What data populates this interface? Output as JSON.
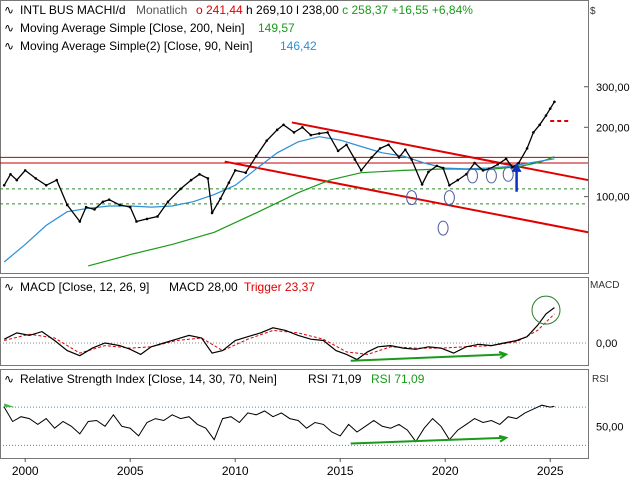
{
  "header": {
    "symbol": "INTL BUS MACHI/d",
    "period": "Monatlich",
    "ohlc": [
      {
        "key": "o",
        "value": "241,44",
        "color": "#e00000"
      },
      {
        "key": "h",
        "value": "269,10",
        "color": "#000000"
      },
      {
        "key": "l",
        "value": "238,00",
        "color": "#000000"
      },
      {
        "key": "c",
        "value": "258,37",
        "color": "#1a9a1a"
      },
      {
        "key": "",
        "value": "+16,55",
        "color": "#1a9a1a"
      },
      {
        "key": "",
        "value": "+6,84%",
        "color": "#1a9a1a"
      }
    ],
    "currency": "$",
    "ma1": {
      "text": "Moving Average Simple  [Close, 200, Nein]",
      "value": "149,57",
      "color": "#1a9a1a"
    },
    "ma2": {
      "text": "Moving Average Simple(2)  [Close, 90, Nein]",
      "value": "146,42",
      "color": "#2b8fd6"
    }
  },
  "macd_header": {
    "text": "MACD  [Close, 12, 26, 9]",
    "macd": "MACD 28,00",
    "trigger": "Trigger 23,37",
    "side": "MACD"
  },
  "rsi_header": {
    "text": "Relative Strength Index  [Close, 14, 30, 70, Nein]",
    "rsi1": "RSI 71,09",
    "rsi2": "RSI 71,09",
    "side": "RSI"
  },
  "chart_data": [
    {
      "type": "line",
      "title": "INTL BUS MACHI/d",
      "scale": "log",
      "y_ticks": [
        "100,00",
        "200,00",
        "300,00"
      ],
      "y_tick_values": [
        100,
        200,
        300
      ],
      "x_ticks": [
        "2000",
        "2005",
        "2010",
        "2015",
        "2020",
        "2025"
      ],
      "xlim": [
        1998.8,
        2026.8
      ],
      "ylim": [
        48,
        400
      ],
      "series": [
        {
          "name": "INTL BUS MACHI/d",
          "color": "#000000",
          "x": [
            1999.0,
            1999.3,
            1999.6,
            2000.0,
            2000.5,
            2001.0,
            2001.5,
            2002.0,
            2002.6,
            2002.9,
            2003.3,
            2003.7,
            2004.0,
            2004.5,
            2005.0,
            2005.3,
            2005.8,
            2006.3,
            2006.8,
            2007.4,
            2007.9,
            2008.3,
            2008.7,
            2008.9,
            2009.3,
            2009.7,
            2010.0,
            2010.5,
            2011.0,
            2011.5,
            2012.0,
            2012.3,
            2012.8,
            2013.2,
            2013.6,
            2014.0,
            2014.4,
            2014.9,
            2015.3,
            2015.7,
            2016.0,
            2016.5,
            2016.9,
            2017.3,
            2017.8,
            2018.1,
            2018.4,
            2018.9,
            2019.2,
            2019.6,
            2019.9,
            2020.2,
            2020.6,
            2021.0,
            2021.4,
            2021.8,
            2022.1,
            2022.5,
            2022.9,
            2023.2,
            2023.5,
            2023.9,
            2024.2,
            2024.5,
            2024.8,
            2025.0,
            2025.2
          ],
          "values": [
            112,
            125,
            118,
            130,
            120,
            112,
            118,
            92,
            78,
            90,
            88,
            95,
            97,
            92,
            90,
            78,
            80,
            82,
            95,
            108,
            118,
            125,
            120,
            85,
            98,
            115,
            130,
            127,
            150,
            175,
            195,
            205,
            190,
            200,
            185,
            188,
            190,
            158,
            168,
            145,
            130,
            148,
            162,
            168,
            148,
            160,
            145,
            113,
            128,
            136,
            133,
            112,
            118,
            125,
            140,
            130,
            132,
            138,
            146,
            134,
            140,
            162,
            190,
            205,
            225,
            241,
            258
          ]
        },
        {
          "name": "Moving Average Simple  [Close, 200, Nein]",
          "color": "#1a9a1a",
          "x": [
            2003.0,
            2005.0,
            2007.0,
            2009.0,
            2011.0,
            2013.0,
            2014.5,
            2016.0,
            2018.0,
            2020.0,
            2022.0,
            2023.5,
            2024.5,
            2025.2
          ],
          "values": [
            50,
            56,
            62,
            70,
            85,
            104,
            118,
            127,
            130,
            132,
            131,
            135,
            141,
            149
          ]
        },
        {
          "name": "Moving Average Simple(2)  [Close, 90, Nein]",
          "color": "#2b8fd6",
          "x": [
            1999.0,
            2000.0,
            2001.0,
            2002.0,
            2003.0,
            2004.0,
            2005.0,
            2006.0,
            2007.0,
            2008.0,
            2009.0,
            2010.0,
            2011.0,
            2012.0,
            2013.0,
            2014.0,
            2015.0,
            2016.0,
            2017.0,
            2018.0,
            2019.0,
            2020.0,
            2021.0,
            2022.0,
            2023.0,
            2024.0,
            2025.2
          ],
          "values": [
            52,
            62,
            75,
            86,
            89,
            91,
            91,
            90,
            91,
            95,
            102,
            112,
            132,
            155,
            173,
            182,
            176,
            165,
            155,
            150,
            140,
            133,
            132,
            133,
            135,
            140,
            146
          ]
        }
      ]
    },
    {
      "type": "line",
      "title": "MACD  [Close, 12, 26, 9]",
      "y_ticks": [
        "0,00"
      ],
      "y_tick_values": [
        0
      ],
      "ylim": [
        -15,
        34
      ],
      "series": [
        {
          "name": "MACD",
          "color": "#000000",
          "x": [
            1999.0,
            1999.6,
            2000.2,
            2000.8,
            2001.4,
            2002.0,
            2002.6,
            2003.2,
            2003.8,
            2004.5,
            2005.0,
            2005.5,
            2006.0,
            2006.6,
            2007.2,
            2007.8,
            2008.4,
            2008.9,
            2009.4,
            2010.0,
            2010.6,
            2011.2,
            2011.8,
            2012.4,
            2013.0,
            2013.6,
            2014.2,
            2014.8,
            2015.3,
            2015.8,
            2016.3,
            2016.8,
            2017.4,
            2018.0,
            2018.6,
            2019.2,
            2019.8,
            2020.4,
            2021.0,
            2021.6,
            2022.2,
            2022.8,
            2023.4,
            2023.9,
            2024.4,
            2024.8,
            2025.2
          ],
          "values": [
            3,
            8,
            6,
            9,
            2,
            -6,
            -10,
            -4,
            0,
            -2,
            -5,
            -9,
            -3,
            0,
            3,
            6,
            4,
            -8,
            -6,
            2,
            5,
            8,
            12,
            10,
            6,
            3,
            2,
            -6,
            -9,
            -13,
            -7,
            -3,
            -2,
            -4,
            -5,
            -3,
            -4,
            -8,
            -3,
            -1,
            -2,
            0,
            2,
            5,
            14,
            23,
            28
          ]
        },
        {
          "name": "Trigger",
          "color": "#e00000",
          "x": [
            1999.0,
            2000.2,
            2001.4,
            2002.6,
            2003.8,
            2005.0,
            2006.0,
            2007.2,
            2008.4,
            2009.4,
            2010.6,
            2011.8,
            2013.0,
            2014.2,
            2015.3,
            2016.3,
            2017.4,
            2018.6,
            2019.8,
            2021.0,
            2022.2,
            2023.4,
            2024.4,
            2025.2
          ],
          "values": [
            2,
            7,
            4,
            -8,
            -2,
            -4,
            -3,
            2,
            4,
            -6,
            3,
            10,
            8,
            3,
            -7,
            -9,
            -3,
            -4,
            -4,
            -3,
            -2,
            1,
            10,
            23
          ]
        }
      ]
    },
    {
      "type": "line",
      "title": "Relative Strength Index  [Close, 14, 30, 70, Nein]",
      "y_ticks": [
        "50,00"
      ],
      "y_tick_values": [
        50
      ],
      "ylim": [
        20,
        90
      ],
      "series": [
        {
          "name": "RSI",
          "color": "#000000",
          "x": [
            1999.0,
            1999.4,
            1999.8,
            2000.2,
            2000.6,
            2001.0,
            2001.4,
            2001.8,
            2002.2,
            2002.6,
            2003.0,
            2003.4,
            2003.8,
            2004.2,
            2004.6,
            2005.0,
            2005.4,
            2005.8,
            2006.2,
            2006.6,
            2007.0,
            2007.4,
            2007.8,
            2008.2,
            2008.6,
            2009.0,
            2009.4,
            2009.8,
            2010.2,
            2010.6,
            2011.0,
            2011.4,
            2011.8,
            2012.2,
            2012.6,
            2013.0,
            2013.4,
            2013.8,
            2014.2,
            2014.6,
            2015.0,
            2015.4,
            2015.8,
            2016.2,
            2016.6,
            2017.0,
            2017.4,
            2017.8,
            2018.2,
            2018.6,
            2019.0,
            2019.4,
            2019.8,
            2020.2,
            2020.6,
            2021.0,
            2021.4,
            2021.8,
            2022.2,
            2022.6,
            2023.0,
            2023.4,
            2023.8,
            2024.2,
            2024.6,
            2025.0,
            2025.2
          ],
          "values": [
            70,
            55,
            60,
            58,
            52,
            58,
            48,
            55,
            50,
            42,
            55,
            56,
            50,
            62,
            50,
            48,
            40,
            54,
            58,
            56,
            62,
            58,
            60,
            52,
            48,
            36,
            58,
            60,
            54,
            64,
            62,
            66,
            60,
            64,
            58,
            56,
            48,
            54,
            52,
            44,
            40,
            52,
            44,
            50,
            56,
            50,
            48,
            52,
            46,
            34,
            48,
            58,
            50,
            36,
            46,
            52,
            58,
            54,
            56,
            52,
            60,
            58,
            64,
            68,
            72,
            70,
            71
          ]
        }
      ]
    }
  ]
}
